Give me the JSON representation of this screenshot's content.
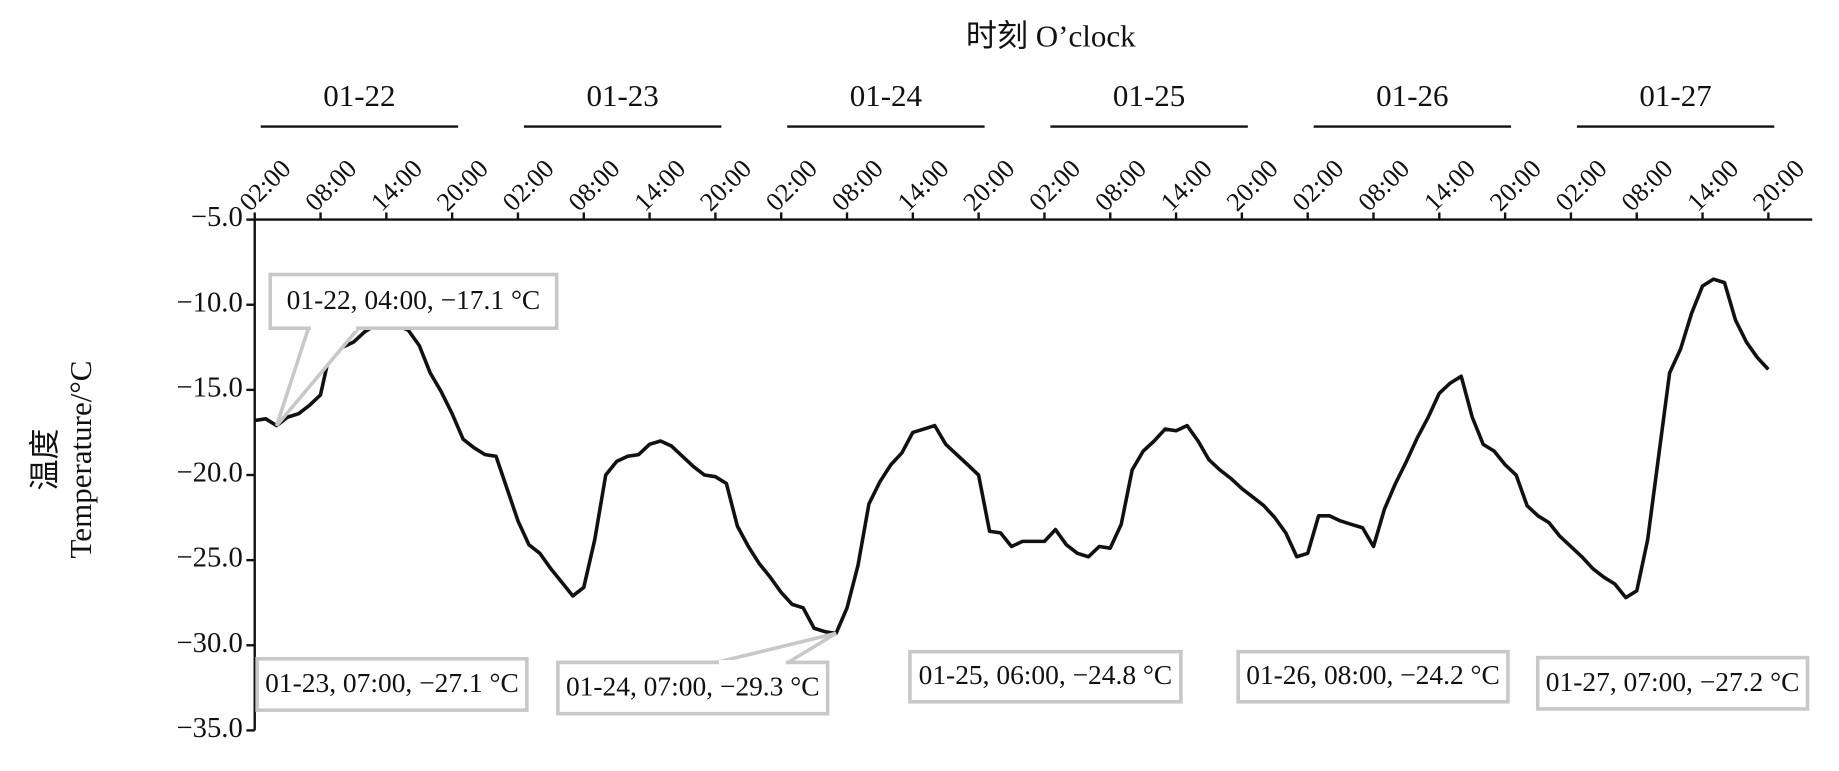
{
  "chart_data": {
    "type": "line",
    "title": "时刻 O’clock",
    "y_label": [
      "温度",
      "Temperature/°C"
    ],
    "color": "#111111",
    "x_groups": [
      "01-22",
      "01-23",
      "01-24",
      "01-25",
      "01-26",
      "01-27"
    ],
    "x": [
      "01-22 02:00",
      "01-22 03:00",
      "01-22 04:00",
      "01-22 05:00",
      "01-22 06:00",
      "01-22 07:00",
      "01-22 08:00",
      "01-22 09:00",
      "01-22 10:00",
      "01-22 11:00",
      "01-22 12:00",
      "01-22 13:00",
      "01-22 14:00",
      "01-22 15:00",
      "01-22 16:00",
      "01-22 17:00",
      "01-22 18:00",
      "01-22 19:00",
      "01-22 20:00",
      "01-22 21:00",
      "01-22 22:00",
      "01-22 23:00",
      "01-23 00:00",
      "01-23 01:00",
      "01-23 02:00",
      "01-23 03:00",
      "01-23 04:00",
      "01-23 05:00",
      "01-23 06:00",
      "01-23 07:00",
      "01-23 08:00",
      "01-23 09:00",
      "01-23 10:00",
      "01-23 11:00",
      "01-23 12:00",
      "01-23 13:00",
      "01-23 14:00",
      "01-23 15:00",
      "01-23 16:00",
      "01-23 17:00",
      "01-23 18:00",
      "01-23 19:00",
      "01-23 20:00",
      "01-23 21:00",
      "01-23 22:00",
      "01-23 23:00",
      "01-24 00:00",
      "01-24 01:00",
      "01-24 02:00",
      "01-24 03:00",
      "01-24 04:00",
      "01-24 05:00",
      "01-24 06:00",
      "01-24 07:00",
      "01-24 08:00",
      "01-24 09:00",
      "01-24 10:00",
      "01-24 11:00",
      "01-24 12:00",
      "01-24 13:00",
      "01-24 14:00",
      "01-24 15:00",
      "01-24 16:00",
      "01-24 17:00",
      "01-24 18:00",
      "01-24 19:00",
      "01-24 20:00",
      "01-24 21:00",
      "01-24 22:00",
      "01-24 23:00",
      "01-25 00:00",
      "01-25 01:00",
      "01-25 02:00",
      "01-25 03:00",
      "01-25 04:00",
      "01-25 05:00",
      "01-25 06:00",
      "01-25 07:00",
      "01-25 08:00",
      "01-25 09:00",
      "01-25 10:00",
      "01-25 11:00",
      "01-25 12:00",
      "01-25 13:00",
      "01-25 14:00",
      "01-25 15:00",
      "01-25 16:00",
      "01-25 17:00",
      "01-25 18:00",
      "01-25 19:00",
      "01-25 20:00",
      "01-25 21:00",
      "01-25 22:00",
      "01-25 23:00",
      "01-26 00:00",
      "01-26 01:00",
      "01-26 02:00",
      "01-26 03:00",
      "01-26 04:00",
      "01-26 05:00",
      "01-26 06:00",
      "01-26 07:00",
      "01-26 08:00",
      "01-26 09:00",
      "01-26 10:00",
      "01-26 11:00",
      "01-26 12:00",
      "01-26 13:00",
      "01-26 14:00",
      "01-26 15:00",
      "01-26 16:00",
      "01-26 17:00",
      "01-26 18:00",
      "01-26 19:00",
      "01-26 20:00",
      "01-26 21:00",
      "01-26 22:00",
      "01-26 23:00",
      "01-27 00:00",
      "01-27 01:00",
      "01-27 02:00",
      "01-27 03:00",
      "01-27 04:00",
      "01-27 05:00",
      "01-27 06:00",
      "01-27 07:00",
      "01-27 08:00",
      "01-27 09:00",
      "01-27 10:00",
      "01-27 11:00",
      "01-27 12:00",
      "01-27 13:00",
      "01-27 14:00",
      "01-27 15:00",
      "01-27 16:00",
      "01-27 17:00",
      "01-27 18:00",
      "01-27 19:00",
      "01-27 20:00"
    ],
    "values": [
      -16.8,
      -16.7,
      -17.1,
      -16.6,
      -16.4,
      -15.9,
      -15.3,
      -12.4,
      -12.5,
      -12.2,
      -11.6,
      -11.2,
      -11.0,
      -11.2,
      -11.5,
      -12.4,
      -14.0,
      -15.1,
      -16.4,
      -17.9,
      -18.4,
      -18.8,
      -18.9,
      -20.8,
      -22.7,
      -24.1,
      -24.6,
      -25.5,
      -26.3,
      -27.1,
      -26.6,
      -23.8,
      -20.0,
      -19.2,
      -18.9,
      -18.8,
      -18.2,
      -18.0,
      -18.3,
      -18.9,
      -19.5,
      -20.0,
      -20.1,
      -20.5,
      -23.0,
      -24.2,
      -25.2,
      -26.0,
      -26.9,
      -27.6,
      -27.8,
      -29.0,
      -29.2,
      -29.3,
      -27.8,
      -25.3,
      -21.7,
      -20.4,
      -19.4,
      -18.7,
      -17.5,
      -17.3,
      -17.1,
      -18.2,
      -18.8,
      -19.4,
      -20.0,
      -23.3,
      -23.4,
      -24.2,
      -23.9,
      -23.9,
      -23.9,
      -23.2,
      -24.1,
      -24.6,
      -24.8,
      -24.2,
      -24.3,
      -22.9,
      -19.7,
      -18.6,
      -18.0,
      -17.3,
      -17.4,
      -17.1,
      -18.0,
      -19.1,
      -19.7,
      -20.2,
      -20.8,
      -21.3,
      -21.8,
      -22.5,
      -23.4,
      -24.8,
      -24.6,
      -22.4,
      -22.4,
      -22.7,
      -22.9,
      -23.1,
      -24.2,
      -22.0,
      -20.5,
      -19.2,
      -17.8,
      -16.6,
      -15.2,
      -14.6,
      -14.2,
      -16.6,
      -18.2,
      -18.6,
      -19.4,
      -20.0,
      -21.8,
      -22.4,
      -22.8,
      -23.6,
      -24.2,
      -24.8,
      -25.5,
      -26.0,
      -26.4,
      -27.2,
      -26.8,
      -23.8,
      -18.9,
      -14.0,
      -12.6,
      -10.5,
      -8.9,
      -8.5,
      -8.7,
      -10.9,
      -12.2,
      -13.1,
      -13.8
    ],
    "xlim": [
      "01-22 02:00",
      "01-28 00:00"
    ],
    "xticks": [
      {
        "value": "01-22 02:00",
        "label": "02:00"
      },
      {
        "value": "01-22 08:00",
        "label": "08:00"
      },
      {
        "value": "01-22 14:00",
        "label": "14:00"
      },
      {
        "value": "01-22 20:00",
        "label": "20:00"
      },
      {
        "value": "01-23 02:00",
        "label": "02:00"
      },
      {
        "value": "01-23 08:00",
        "label": "08:00"
      },
      {
        "value": "01-23 14:00",
        "label": "14:00"
      },
      {
        "value": "01-23 20:00",
        "label": "20:00"
      },
      {
        "value": "01-24 02:00",
        "label": "02:00"
      },
      {
        "value": "01-24 08:00",
        "label": "08:00"
      },
      {
        "value": "01-24 14:00",
        "label": "14:00"
      },
      {
        "value": "01-24 20:00",
        "label": "20:00"
      },
      {
        "value": "01-25 02:00",
        "label": "02:00"
      },
      {
        "value": "01-25 08:00",
        "label": "08:00"
      },
      {
        "value": "01-25 14:00",
        "label": "14:00"
      },
      {
        "value": "01-25 20:00",
        "label": "20:00"
      },
      {
        "value": "01-26 02:00",
        "label": "02:00"
      },
      {
        "value": "01-26 08:00",
        "label": "08:00"
      },
      {
        "value": "01-26 14:00",
        "label": "14:00"
      },
      {
        "value": "01-26 20:00",
        "label": "20:00"
      },
      {
        "value": "01-27 02:00",
        "label": "02:00"
      },
      {
        "value": "01-27 08:00",
        "label": "08:00"
      },
      {
        "value": "01-27 14:00",
        "label": "14:00"
      },
      {
        "value": "01-27 20:00",
        "label": "20:00"
      }
    ],
    "ylim": [
      -35,
      -5
    ],
    "yticks": [
      {
        "value": -5,
        "label": "−5.0"
      },
      {
        "value": -10,
        "label": "−10.0"
      },
      {
        "value": -15,
        "label": "−15.0"
      },
      {
        "value": -20,
        "label": "−20.0"
      },
      {
        "value": -25,
        "label": "−25.0"
      },
      {
        "value": -30,
        "label": "−30.0"
      },
      {
        "value": -35,
        "label": "−35.0"
      }
    ],
    "annotations": [
      {
        "text": "01-22, 04:00, −17.1 °C",
        "x": "01-22 04:00",
        "y": -17.1
      },
      {
        "text": "01-23, 07:00, −27.1 °C",
        "x": "01-23 07:00",
        "y": -27.1
      },
      {
        "text": "01-24, 07:00, −29.3 °C",
        "x": "01-24 07:00",
        "y": -29.3
      },
      {
        "text": "01-25, 06:00, −24.8 °C",
        "x": "01-25 06:00",
        "y": -24.8
      },
      {
        "text": "01-26, 08:00, −24.2 °C",
        "x": "01-26 08:00",
        "y": -24.2
      },
      {
        "text": "01-27, 07:00, −27.2 °C",
        "x": "01-27 07:00",
        "y": -27.2
      }
    ]
  }
}
